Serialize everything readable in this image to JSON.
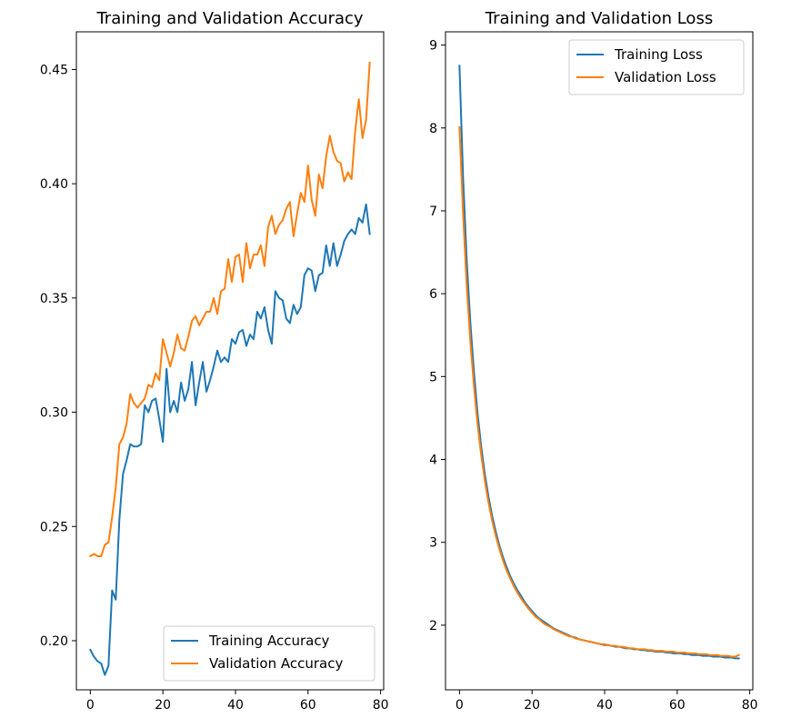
{
  "colors": {
    "training": "#1f77b4",
    "validation": "#ff7f0e"
  },
  "chart_data": [
    {
      "type": "line",
      "title": "Training and Validation Accuracy",
      "xlabel": "",
      "ylabel": "",
      "xlim": [
        -3.85,
        80.85
      ],
      "ylim": [
        0.1785,
        0.4665
      ],
      "xticks": [
        0,
        20,
        40,
        60,
        80
      ],
      "yticks": [
        0.2,
        0.25,
        0.3,
        0.35,
        0.4,
        0.45
      ],
      "ytick_labels": [
        "0.20",
        "0.25",
        "0.30",
        "0.35",
        "0.40",
        "0.45"
      ],
      "grid": false,
      "legend": "lower-right",
      "x": [
        0,
        1,
        2,
        3,
        4,
        5,
        6,
        7,
        8,
        9,
        10,
        11,
        12,
        13,
        14,
        15,
        16,
        17,
        18,
        19,
        20,
        21,
        22,
        23,
        24,
        25,
        26,
        27,
        28,
        29,
        30,
        31,
        32,
        33,
        34,
        35,
        36,
        37,
        38,
        39,
        40,
        41,
        42,
        43,
        44,
        45,
        46,
        47,
        48,
        49,
        50,
        51,
        52,
        53,
        54,
        55,
        56,
        57,
        58,
        59,
        60,
        61,
        62,
        63,
        64,
        65,
        66,
        67,
        68,
        69,
        70,
        71,
        72,
        73,
        74,
        75,
        76,
        77
      ],
      "series": [
        {
          "name": "Training Accuracy",
          "color": "#1f77b4",
          "values": [
            0.196,
            0.193,
            0.191,
            0.19,
            0.185,
            0.189,
            0.222,
            0.218,
            0.253,
            0.273,
            0.279,
            0.286,
            0.285,
            0.285,
            0.286,
            0.303,
            0.3,
            0.305,
            0.306,
            0.297,
            0.287,
            0.319,
            0.3,
            0.305,
            0.3,
            0.313,
            0.305,
            0.31,
            0.322,
            0.303,
            0.313,
            0.322,
            0.309,
            0.314,
            0.32,
            0.327,
            0.322,
            0.324,
            0.322,
            0.332,
            0.33,
            0.335,
            0.336,
            0.329,
            0.334,
            0.332,
            0.344,
            0.341,
            0.346,
            0.336,
            0.33,
            0.353,
            0.35,
            0.349,
            0.341,
            0.339,
            0.347,
            0.343,
            0.346,
            0.36,
            0.363,
            0.362,
            0.353,
            0.36,
            0.361,
            0.373,
            0.364,
            0.374,
            0.364,
            0.369,
            0.375,
            0.378,
            0.38,
            0.378,
            0.385,
            0.383,
            0.391,
            0.378
          ]
        },
        {
          "name": "Validation Accuracy",
          "color": "#ff7f0e",
          "values": [
            0.237,
            0.238,
            0.237,
            0.237,
            0.242,
            0.243,
            0.254,
            0.267,
            0.286,
            0.289,
            0.295,
            0.308,
            0.304,
            0.302,
            0.304,
            0.306,
            0.312,
            0.311,
            0.317,
            0.314,
            0.332,
            0.326,
            0.32,
            0.326,
            0.334,
            0.328,
            0.327,
            0.333,
            0.34,
            0.342,
            0.338,
            0.341,
            0.344,
            0.344,
            0.35,
            0.343,
            0.353,
            0.354,
            0.367,
            0.357,
            0.368,
            0.369,
            0.357,
            0.374,
            0.363,
            0.369,
            0.369,
            0.373,
            0.364,
            0.381,
            0.386,
            0.378,
            0.382,
            0.384,
            0.389,
            0.392,
            0.377,
            0.387,
            0.396,
            0.392,
            0.408,
            0.393,
            0.386,
            0.404,
            0.398,
            0.412,
            0.421,
            0.414,
            0.41,
            0.409,
            0.401,
            0.405,
            0.402,
            0.423,
            0.437,
            0.42,
            0.428,
            0.453
          ]
        }
      ]
    },
    {
      "type": "line",
      "title": "Training and Validation Loss",
      "xlabel": "",
      "ylabel": "",
      "xlim": [
        -3.85,
        80.85
      ],
      "ylim": [
        1.22,
        9.16
      ],
      "xticks": [
        0,
        20,
        40,
        60,
        80
      ],
      "yticks": [
        2,
        3,
        4,
        5,
        6,
        7,
        8,
        9
      ],
      "ytick_labels": [
        "2",
        "3",
        "4",
        "5",
        "6",
        "7",
        "8",
        "9"
      ],
      "grid": false,
      "legend": "upper-right",
      "x": [
        0,
        1,
        2,
        3,
        4,
        5,
        6,
        7,
        8,
        9,
        10,
        11,
        12,
        13,
        14,
        15,
        16,
        17,
        18,
        19,
        20,
        21,
        22,
        23,
        24,
        25,
        26,
        27,
        28,
        29,
        30,
        31,
        32,
        33,
        34,
        35,
        36,
        37,
        38,
        39,
        40,
        41,
        42,
        43,
        44,
        45,
        46,
        47,
        48,
        49,
        50,
        51,
        52,
        53,
        54,
        55,
        56,
        57,
        58,
        59,
        60,
        61,
        62,
        63,
        64,
        65,
        66,
        67,
        68,
        69,
        70,
        71,
        72,
        73,
        74,
        75,
        76,
        77
      ],
      "series": [
        {
          "name": "Training Loss",
          "color": "#1f77b4",
          "values": [
            8.75,
            7.4,
            6.4,
            5.65,
            5.05,
            4.55,
            4.15,
            3.82,
            3.55,
            3.32,
            3.13,
            2.96,
            2.82,
            2.7,
            2.59,
            2.5,
            2.42,
            2.35,
            2.28,
            2.22,
            2.17,
            2.12,
            2.08,
            2.05,
            2.02,
            1.99,
            1.96,
            1.94,
            1.92,
            1.9,
            1.88,
            1.86,
            1.85,
            1.83,
            1.82,
            1.81,
            1.8,
            1.79,
            1.78,
            1.77,
            1.76,
            1.76,
            1.75,
            1.74,
            1.74,
            1.73,
            1.72,
            1.72,
            1.71,
            1.71,
            1.7,
            1.7,
            1.69,
            1.69,
            1.68,
            1.68,
            1.68,
            1.67,
            1.67,
            1.66,
            1.66,
            1.66,
            1.65,
            1.65,
            1.64,
            1.64,
            1.64,
            1.63,
            1.63,
            1.63,
            1.62,
            1.62,
            1.62,
            1.61,
            1.61,
            1.61,
            1.6,
            1.6
          ]
        },
        {
          "name": "Validation Loss",
          "color": "#ff7f0e",
          "values": [
            8.01,
            6.96,
            6.1,
            5.42,
            4.88,
            4.42,
            4.05,
            3.74,
            3.48,
            3.26,
            3.08,
            2.92,
            2.78,
            2.66,
            2.56,
            2.47,
            2.39,
            2.32,
            2.26,
            2.2,
            2.15,
            2.1,
            2.07,
            2.03,
            2.0,
            1.98,
            1.95,
            1.93,
            1.91,
            1.89,
            1.87,
            1.86,
            1.84,
            1.83,
            1.82,
            1.81,
            1.8,
            1.79,
            1.78,
            1.77,
            1.77,
            1.76,
            1.75,
            1.75,
            1.74,
            1.74,
            1.73,
            1.72,
            1.72,
            1.71,
            1.71,
            1.71,
            1.7,
            1.7,
            1.69,
            1.69,
            1.69,
            1.68,
            1.68,
            1.68,
            1.67,
            1.67,
            1.67,
            1.66,
            1.66,
            1.66,
            1.65,
            1.65,
            1.65,
            1.64,
            1.64,
            1.64,
            1.63,
            1.63,
            1.63,
            1.62,
            1.62,
            1.64
          ]
        }
      ]
    }
  ]
}
